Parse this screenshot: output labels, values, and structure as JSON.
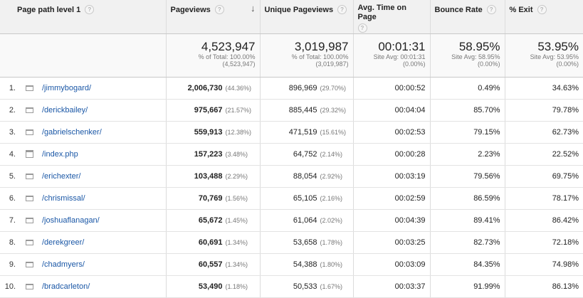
{
  "headers": {
    "page_path": "Page path level 1",
    "pageviews": "Pageviews",
    "unique_pageviews": "Unique Pageviews",
    "avg_time": "Avg. Time on Page",
    "bounce_rate": "Bounce Rate",
    "exit": "% Exit",
    "help_glyph": "?",
    "sort_glyph": "↓"
  },
  "totals": {
    "pageviews": {
      "value": "4,523,947",
      "line1": "% of Total: 100.00%",
      "line2": "(4,523,947)"
    },
    "unique_pageviews": {
      "value": "3,019,987",
      "line1": "% of Total: 100.00%",
      "line2": "(3,019,987)"
    },
    "avg_time": {
      "value": "00:01:31",
      "line1": "Site Avg: 00:01:31",
      "line2": "(0.00%)"
    },
    "bounce_rate": {
      "value": "58.95%",
      "line1": "Site Avg: 58.95%",
      "line2": "(0.00%)"
    },
    "exit": {
      "value": "53.95%",
      "line1": "Site Avg: 53.95%",
      "line2": "(0.00%)"
    }
  },
  "rows": [
    {
      "idx": "1.",
      "icon": "folder-icon",
      "path": "/jimmybogard/",
      "pv": "2,006,730",
      "pv_pct": "(44.36%)",
      "upv": "896,969",
      "upv_pct": "(29.70%)",
      "time": "00:00:52",
      "bounce": "0.49%",
      "exit": "34.63%"
    },
    {
      "idx": "2.",
      "icon": "folder-icon",
      "path": "/derickbailey/",
      "pv": "975,667",
      "pv_pct": "(21.57%)",
      "upv": "885,445",
      "upv_pct": "(29.32%)",
      "time": "00:04:04",
      "bounce": "85.70%",
      "exit": "79.78%"
    },
    {
      "idx": "3.",
      "icon": "folder-icon",
      "path": "/gabrielschenker/",
      "pv": "559,913",
      "pv_pct": "(12.38%)",
      "upv": "471,519",
      "upv_pct": "(15.61%)",
      "time": "00:02:53",
      "bounce": "79.15%",
      "exit": "62.73%"
    },
    {
      "idx": "4.",
      "icon": "page-icon",
      "path": "/index.php",
      "pv": "157,223",
      "pv_pct": "(3.48%)",
      "upv": "64,752",
      "upv_pct": "(2.14%)",
      "time": "00:00:28",
      "bounce": "2.23%",
      "exit": "22.52%"
    },
    {
      "idx": "5.",
      "icon": "folder-icon",
      "path": "/erichexter/",
      "pv": "103,488",
      "pv_pct": "(2.29%)",
      "upv": "88,054",
      "upv_pct": "(2.92%)",
      "time": "00:03:19",
      "bounce": "79.56%",
      "exit": "69.75%"
    },
    {
      "idx": "6.",
      "icon": "folder-icon",
      "path": "/chrismissal/",
      "pv": "70,769",
      "pv_pct": "(1.56%)",
      "upv": "65,105",
      "upv_pct": "(2.16%)",
      "time": "00:02:59",
      "bounce": "86.59%",
      "exit": "78.17%"
    },
    {
      "idx": "7.",
      "icon": "folder-icon",
      "path": "/joshuaflanagan/",
      "pv": "65,672",
      "pv_pct": "(1.45%)",
      "upv": "61,064",
      "upv_pct": "(2.02%)",
      "time": "00:04:39",
      "bounce": "89.41%",
      "exit": "86.42%"
    },
    {
      "idx": "8.",
      "icon": "folder-icon",
      "path": "/derekgreer/",
      "pv": "60,691",
      "pv_pct": "(1.34%)",
      "upv": "53,658",
      "upv_pct": "(1.78%)",
      "time": "00:03:25",
      "bounce": "82.73%",
      "exit": "72.18%"
    },
    {
      "idx": "9.",
      "icon": "folder-icon",
      "path": "/chadmyers/",
      "pv": "60,557",
      "pv_pct": "(1.34%)",
      "upv": "54,388",
      "upv_pct": "(1.80%)",
      "time": "00:03:09",
      "bounce": "84.35%",
      "exit": "74.98%"
    },
    {
      "idx": "10.",
      "icon": "folder-icon",
      "path": "/bradcarleton/",
      "pv": "53,490",
      "pv_pct": "(1.18%)",
      "upv": "50,533",
      "upv_pct": "(1.67%)",
      "time": "00:03:37",
      "bounce": "91.99%",
      "exit": "86.13%"
    }
  ]
}
